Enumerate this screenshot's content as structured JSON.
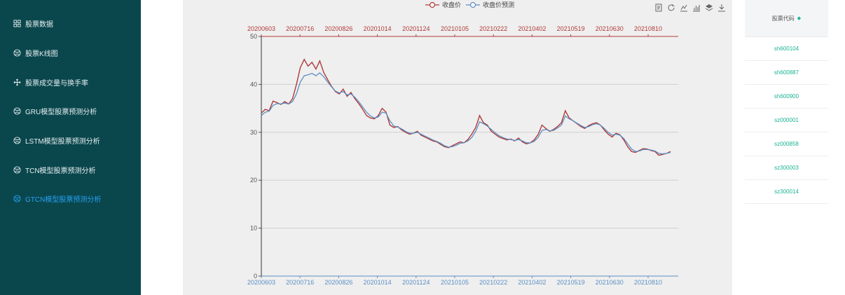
{
  "sidebar": {
    "items": [
      {
        "label": "股票数据",
        "icon": "grid-icon",
        "active": false
      },
      {
        "label": "股票K线图",
        "icon": "globe-icon",
        "active": false
      },
      {
        "label": "股票成交量与换手率",
        "icon": "move-icon",
        "active": false
      },
      {
        "label": "GRU模型股票预测分析",
        "icon": "globe-icon",
        "active": false
      },
      {
        "label": "LSTM模型股票预测分析",
        "icon": "globe-icon",
        "active": false
      },
      {
        "label": "TCN模型股票预测分析",
        "icon": "globe-icon",
        "active": false
      },
      {
        "label": "GTCN模型股票预测分析",
        "icon": "globe-icon",
        "active": true
      }
    ]
  },
  "toolbar": {
    "icons": [
      "data-view-icon",
      "restore-icon",
      "line-chart-icon",
      "bar-chart-icon",
      "stack-icon",
      "download-icon"
    ]
  },
  "table": {
    "header": "股票代码",
    "rows": [
      "sh600104",
      "sh600887",
      "sh600900",
      "sz000001",
      "sz000858",
      "sz300003",
      "sz300014"
    ]
  },
  "chart_data": {
    "type": "line",
    "title": "",
    "ylim": [
      0,
      50
    ],
    "yticks": [
      0,
      10,
      20,
      30,
      40,
      50
    ],
    "grid": true,
    "legend_position": "top",
    "colors": {
      "actual": "#b03a3a",
      "predicted": "#5b8fc4"
    },
    "x_tick_labels": [
      "20200603",
      "20200716",
      "20200826",
      "20201014",
      "20201124",
      "20210105",
      "20210222",
      "20210402",
      "20210519",
      "20210630",
      "20210810"
    ],
    "series": [
      {
        "name": "收盘价",
        "color": "#b03a3a",
        "values": [
          34.0,
          34.8,
          34.5,
          36.5,
          36.2,
          35.8,
          36.4,
          35.9,
          37.0,
          40.0,
          43.5,
          45.2,
          43.8,
          44.6,
          43.2,
          44.9,
          42.5,
          41.0,
          39.6,
          38.5,
          38.0,
          39.0,
          37.5,
          38.3,
          37.0,
          36.0,
          34.8,
          33.5,
          33.0,
          32.8,
          33.5,
          35.0,
          34.2,
          31.5,
          31.0,
          31.2,
          30.5,
          30.0,
          29.6,
          29.8,
          30.2,
          29.4,
          29.0,
          28.6,
          28.2,
          28.0,
          27.5,
          27.0,
          26.8,
          27.2,
          27.6,
          28.0,
          27.8,
          28.5,
          29.6,
          31.0,
          33.5,
          32.0,
          31.5,
          30.2,
          29.6,
          29.0,
          28.7,
          28.4,
          28.6,
          28.2,
          28.8,
          28.0,
          27.6,
          27.8,
          28.4,
          29.5,
          31.5,
          30.8,
          30.2,
          30.6,
          31.2,
          32.0,
          34.5,
          33.0,
          32.4,
          31.8,
          31.2,
          30.8,
          31.4,
          31.8,
          32.0,
          31.5,
          30.5,
          29.6,
          29.0,
          29.8,
          29.5,
          28.4,
          27.0,
          26.0,
          25.8,
          26.2,
          26.6,
          26.5,
          26.2,
          26.0,
          25.2,
          25.4,
          25.6,
          26.0
        ]
      },
      {
        "name": "收盘价预测",
        "color": "#5b8fc4",
        "values": [
          33.5,
          34.2,
          34.4,
          35.6,
          36.0,
          35.9,
          36.1,
          35.9,
          36.4,
          38.0,
          40.5,
          41.8,
          42.0,
          42.3,
          41.8,
          42.4,
          41.6,
          40.5,
          39.5,
          38.6,
          38.2,
          38.5,
          37.8,
          38.0,
          37.3,
          36.4,
          35.3,
          34.2,
          33.4,
          33.0,
          33.2,
          34.2,
          34.0,
          32.4,
          31.3,
          31.1,
          30.7,
          30.2,
          29.8,
          29.8,
          30.0,
          29.6,
          29.2,
          28.8,
          28.4,
          28.1,
          27.7,
          27.2,
          26.9,
          27.0,
          27.3,
          27.7,
          27.8,
          28.2,
          28.9,
          30.2,
          32.2,
          31.8,
          31.3,
          30.6,
          29.9,
          29.3,
          28.9,
          28.6,
          28.5,
          28.3,
          28.5,
          28.2,
          27.8,
          27.8,
          28.1,
          28.9,
          30.4,
          30.6,
          30.3,
          30.4,
          30.9,
          31.5,
          33.4,
          32.8,
          32.4,
          31.9,
          31.4,
          31.0,
          31.2,
          31.6,
          31.8,
          31.5,
          30.8,
          30.0,
          29.4,
          29.6,
          29.4,
          28.7,
          27.6,
          26.5,
          26.0,
          26.1,
          26.4,
          26.4,
          26.3,
          26.1,
          25.6,
          25.5,
          25.6,
          25.8
        ]
      }
    ]
  }
}
